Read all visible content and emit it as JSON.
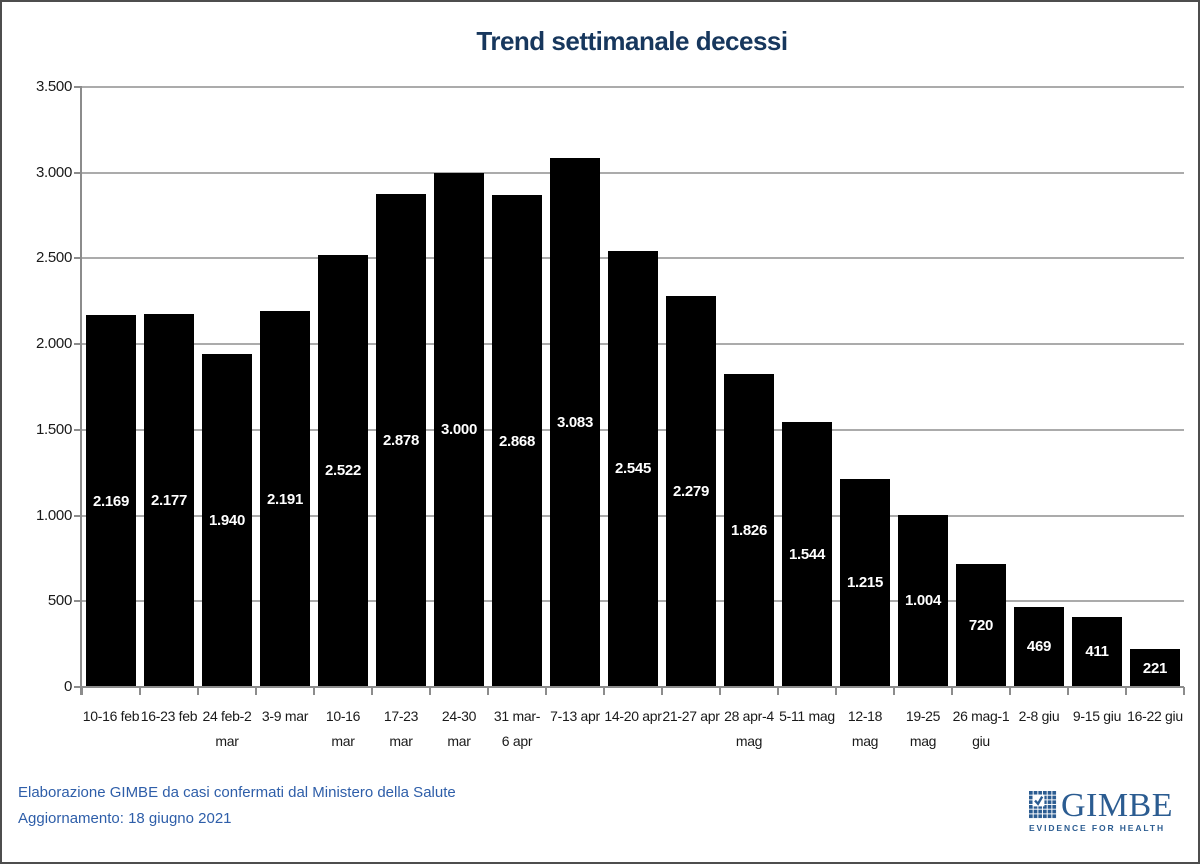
{
  "chart_data": {
    "type": "bar",
    "title": "Trend settimanale decessi",
    "categories": [
      "10-16 feb",
      "16-23 feb",
      "24 feb-2\nmar",
      "3-9 mar",
      "10-16\nmar",
      "17-23\nmar",
      "24-30\nmar",
      "31 mar-\n6 apr",
      "7-13 apr",
      "14-20 apr",
      "21-27 apr",
      "28 apr-4\nmag",
      "5-11 mag",
      "12-18\nmag",
      "19-25\nmag",
      "26 mag-1\ngiu",
      "2-8 giu",
      "9-15 giu",
      "16-22 giu"
    ],
    "values": [
      2169,
      2177,
      1940,
      2191,
      2522,
      2878,
      3000,
      2868,
      3083,
      2545,
      2279,
      1826,
      1544,
      1215,
      1004,
      720,
      469,
      411,
      221
    ],
    "value_labels": [
      "2.169",
      "2.177",
      "1.940",
      "2.191",
      "2.522",
      "2.878",
      "3.000",
      "2.868",
      "3.083",
      "2.545",
      "2.279",
      "1.826",
      "1.544",
      "1.215",
      "1.004",
      "720",
      "469",
      "411",
      "221"
    ],
    "xlabel": "",
    "ylabel": "",
    "ylim": [
      0,
      3500
    ],
    "ytick_step": 500,
    "ytick_labels": [
      "0",
      "500",
      "1.000",
      "1.500",
      "2.000",
      "2.500",
      "3.000",
      "3.500"
    ],
    "grid": true,
    "legend": "none",
    "bar_color": "#000000",
    "value_label_color": "#ffffff"
  },
  "footer": {
    "source": "Elaborazione GIMBE da casi confermati dal Ministero della Salute",
    "update": "Aggiornamento: 18 giugno 2021"
  },
  "logo": {
    "name": "GIMBE",
    "tagline": "EVIDENCE FOR HEALTH"
  },
  "colors": {
    "title": "#17375D",
    "footer": "#2E5EA9",
    "logo": "#2B5C91",
    "grid": "#ABABAB",
    "axis": "#8C8C8C",
    "tick_text": "#1A1A1A"
  }
}
